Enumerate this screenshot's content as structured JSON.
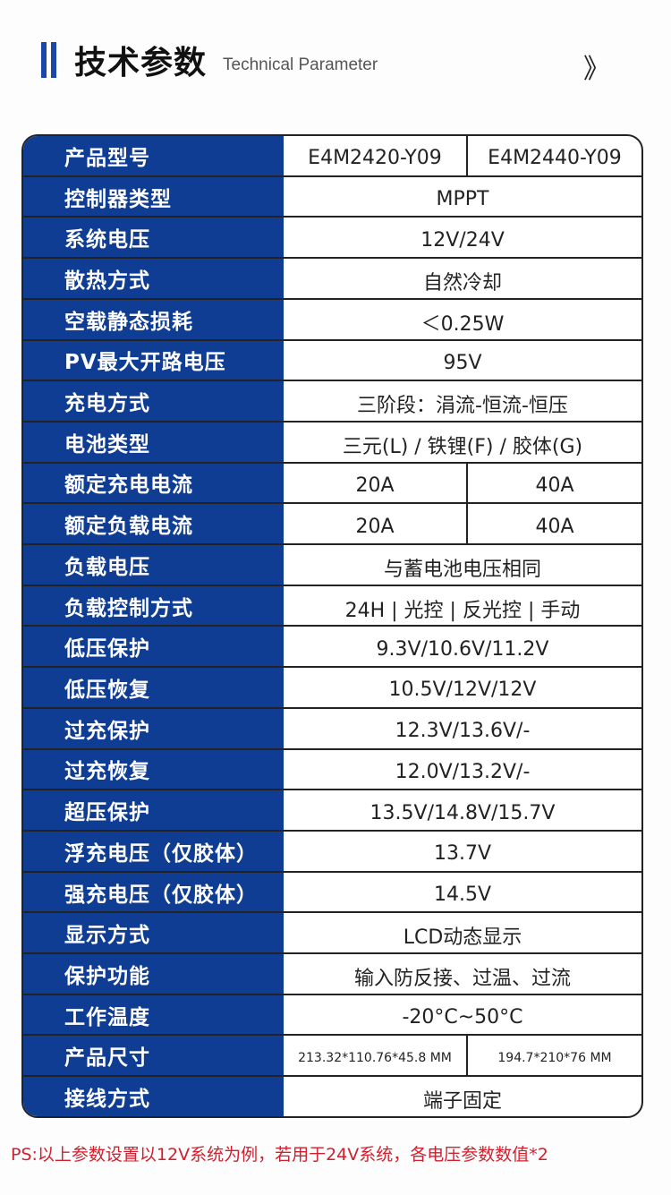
{
  "header": {
    "title": "技术参数",
    "subtitle": "Technical Parameter",
    "icon": "double-chevron-right-icon",
    "accent": "#1a47a8"
  },
  "table": {
    "label_bg": "#0f3d94",
    "rows": [
      {
        "label": "产品型号",
        "values": [
          "E4M2420-Y09",
          "E4M2440-Y09"
        ]
      },
      {
        "label": "控制器类型",
        "values": [
          "MPPT"
        ]
      },
      {
        "label": "系统电压",
        "values": [
          "12V/24V"
        ]
      },
      {
        "label": "散热方式",
        "values": [
          "自然冷却"
        ]
      },
      {
        "label": "空载静态损耗",
        "values": [
          "＜0.25W"
        ]
      },
      {
        "label": "PV最大开路电压",
        "values": [
          "95V"
        ]
      },
      {
        "label": "充电方式",
        "values": [
          "三阶段：涓流-恒流-恒压"
        ]
      },
      {
        "label": "电池类型",
        "values": [
          "三元(L) / 铁锂(F) / 胶体(G)"
        ]
      },
      {
        "label": "额定充电电流",
        "values": [
          "20A",
          "40A"
        ]
      },
      {
        "label": "额定负载电流",
        "values": [
          "20A",
          "40A"
        ]
      },
      {
        "label": "负载电压",
        "values": [
          "与蓄电池电压相同"
        ]
      },
      {
        "label": "负载控制方式",
        "values": [
          "24H | 光控 | 反光控 | 手动"
        ]
      },
      {
        "label": "低压保护",
        "values": [
          "9.3V/10.6V/11.2V"
        ]
      },
      {
        "label": "低压恢复",
        "values": [
          "10.5V/12V/12V"
        ]
      },
      {
        "label": "过充保护",
        "values": [
          "12.3V/13.6V/-"
        ]
      },
      {
        "label": "过充恢复",
        "values": [
          "12.0V/13.2V/-"
        ]
      },
      {
        "label": "超压保护",
        "values": [
          "13.5V/14.8V/15.7V"
        ]
      },
      {
        "label": "浮充电压（仅胶体）",
        "values": [
          "13.7V"
        ]
      },
      {
        "label": "强充电压（仅胶体）",
        "values": [
          "14.5V"
        ]
      },
      {
        "label": "显示方式",
        "values": [
          "LCD动态显示"
        ]
      },
      {
        "label": "保护功能",
        "values": [
          "输入防反接、过温、过流"
        ]
      },
      {
        "label": "工作温度",
        "values": [
          "-20°C~50°C"
        ]
      },
      {
        "label": "产品尺寸",
        "values": [
          "213.32*110.76*45.8 MM",
          "194.7*210*76 MM"
        ]
      },
      {
        "label": "接线方式",
        "values": [
          "端子固定"
        ]
      }
    ]
  },
  "note": {
    "text": "PS:以上参数设置以12V系统为例，若用于24V系统，各电压参数数值*2",
    "color": "#d0202e"
  }
}
